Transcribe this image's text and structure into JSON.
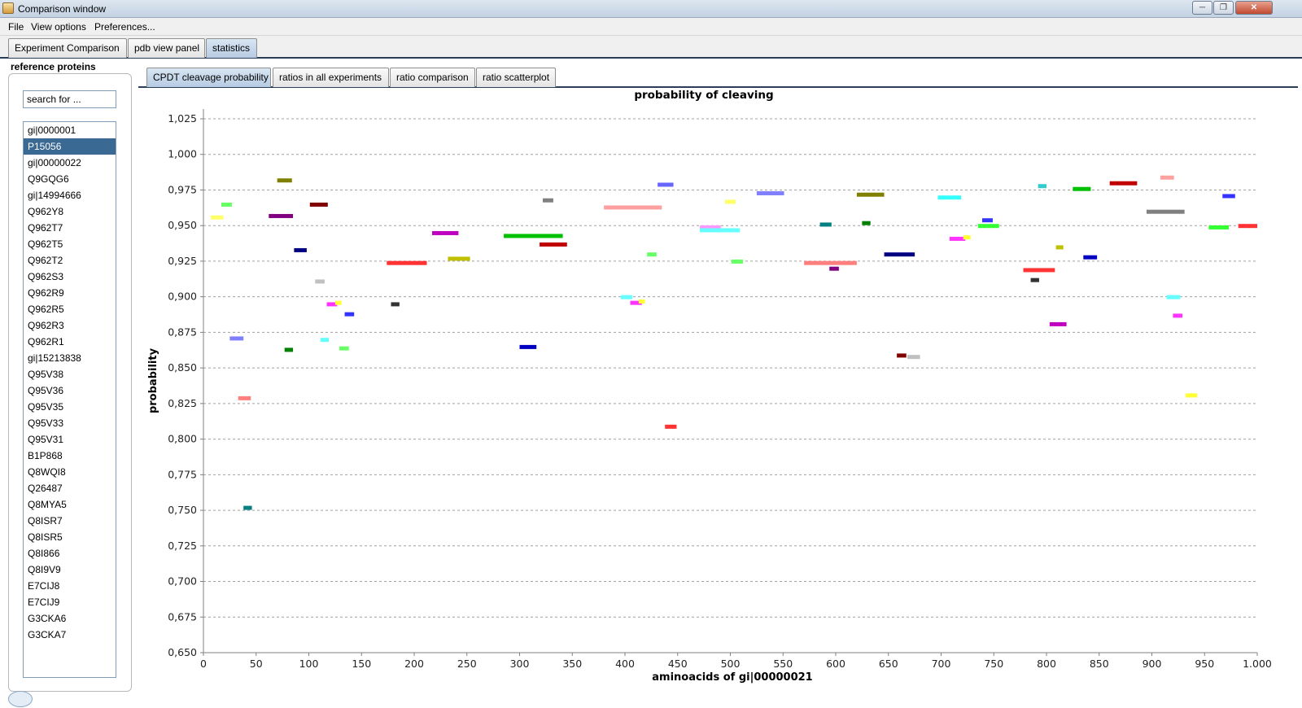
{
  "window": {
    "title": "Comparison window",
    "min": "─",
    "max": "❐",
    "close": "✕"
  },
  "menu": {
    "file": "File",
    "view": "View options",
    "prefs": "Preferences..."
  },
  "main_tabs": [
    "Experiment Comparison",
    "pdb view panel",
    "statistics"
  ],
  "left_panel": {
    "label": "reference proteins",
    "search_value": "search for ...",
    "proteins": [
      "gi|0000001",
      "P15056",
      "gi|00000022",
      "Q9GQG6",
      "gi|14994666",
      "Q962Y8",
      "Q962T7",
      "Q962T5",
      "Q962T2",
      "Q962S3",
      "Q962R9",
      "Q962R5",
      "Q962R3",
      "Q962R1",
      "gi|15213838",
      "Q95V38",
      "Q95V36",
      "Q95V35",
      "Q95V33",
      "Q95V31",
      "B1P868",
      "Q8WQI8",
      "Q26487",
      "Q8MYA5",
      "Q8ISR7",
      "Q8ISR5",
      "Q8I866",
      "Q8I9V9",
      "E7CIJ8",
      "E7CIJ9",
      "G3CKA6",
      "G3CKA7"
    ],
    "selected_index": 1
  },
  "sub_tabs": [
    "CPDT cleavage probability",
    "ratios in all experiments",
    "ratio comparison",
    "ratio scatterplot"
  ],
  "chart_data": {
    "type": "bar",
    "title": "probability of cleaving",
    "xlabel": "aminoacids of gi|00000021",
    "ylabel": "probability",
    "xlim": [
      0,
      1000
    ],
    "ylim": [
      0.65,
      1.025
    ],
    "x_ticks": [
      "0",
      "50",
      "100",
      "150",
      "200",
      "250",
      "300",
      "350",
      "400",
      "450",
      "500",
      "550",
      "600",
      "650",
      "700",
      "750",
      "800",
      "850",
      "900",
      "950",
      "1.000"
    ],
    "y_ticks": [
      "0,650",
      "0,675",
      "0,700",
      "0,725",
      "0,750",
      "0,775",
      "0,800",
      "0,825",
      "0,850",
      "0,875",
      "0,900",
      "0,925",
      "0,950",
      "0,975",
      "1,000",
      "1,025"
    ],
    "grid": true,
    "segments": [
      {
        "x0": 7,
        "x1": 19,
        "y": 0.956,
        "color": "#ffff66"
      },
      {
        "x0": 17,
        "x1": 27,
        "y": 0.965,
        "color": "#66ff66"
      },
      {
        "x0": 25,
        "x1": 38,
        "y": 0.871,
        "color": "#8080ff"
      },
      {
        "x0": 33,
        "x1": 45,
        "y": 0.829,
        "color": "#ff7f7f"
      },
      {
        "x0": 38,
        "x1": 46,
        "y": 0.752,
        "color": "#008080"
      },
      {
        "x0": 62,
        "x1": 85,
        "y": 0.957,
        "color": "#800080"
      },
      {
        "x0": 70,
        "x1": 84,
        "y": 0.982,
        "color": "#808000"
      },
      {
        "x0": 77,
        "x1": 85,
        "y": 0.863,
        "color": "#008000"
      },
      {
        "x0": 86,
        "x1": 98,
        "y": 0.933,
        "color": "#000080"
      },
      {
        "x0": 101,
        "x1": 118,
        "y": 0.965,
        "color": "#800000"
      },
      {
        "x0": 106,
        "x1": 115,
        "y": 0.911,
        "color": "#c0c0c0"
      },
      {
        "x0": 111,
        "x1": 119,
        "y": 0.87,
        "color": "#66ffff"
      },
      {
        "x0": 117,
        "x1": 127,
        "y": 0.895,
        "color": "#ff33ff"
      },
      {
        "x0": 125,
        "x1": 131,
        "y": 0.896,
        "color": "#ffff33"
      },
      {
        "x0": 129,
        "x1": 138,
        "y": 0.864,
        "color": "#66ff66"
      },
      {
        "x0": 134,
        "x1": 143,
        "y": 0.888,
        "color": "#3333ff"
      },
      {
        "x0": 174,
        "x1": 212,
        "y": 0.924,
        "color": "#ff3333"
      },
      {
        "x0": 178,
        "x1": 186,
        "y": 0.895,
        "color": "#333333"
      },
      {
        "x0": 217,
        "x1": 242,
        "y": 0.945,
        "color": "#c000c0"
      },
      {
        "x0": 232,
        "x1": 253,
        "y": 0.927,
        "color": "#c0c000"
      },
      {
        "x0": 285,
        "x1": 341,
        "y": 0.943,
        "color": "#00c000"
      },
      {
        "x0": 300,
        "x1": 316,
        "y": 0.865,
        "color": "#0000c0"
      },
      {
        "x0": 322,
        "x1": 332,
        "y": 0.968,
        "color": "#808080"
      },
      {
        "x0": 319,
        "x1": 345,
        "y": 0.937,
        "color": "#c00000"
      },
      {
        "x0": 380,
        "x1": 435,
        "y": 0.963,
        "color": "#ffa0a0"
      },
      {
        "x0": 396,
        "x1": 407,
        "y": 0.9,
        "color": "#66ffff"
      },
      {
        "x0": 405,
        "x1": 416,
        "y": 0.896,
        "color": "#ff33ff"
      },
      {
        "x0": 413,
        "x1": 419,
        "y": 0.897,
        "color": "#ffff33"
      },
      {
        "x0": 421,
        "x1": 430,
        "y": 0.93,
        "color": "#66ff66"
      },
      {
        "x0": 431,
        "x1": 446,
        "y": 0.979,
        "color": "#6666ff"
      },
      {
        "x0": 438,
        "x1": 449,
        "y": 0.809,
        "color": "#ff3333"
      },
      {
        "x0": 471,
        "x1": 491,
        "y": 0.949,
        "color": "#ff99ff"
      },
      {
        "x0": 471,
        "x1": 509,
        "y": 0.947,
        "color": "#66ffff"
      },
      {
        "x0": 495,
        "x1": 505,
        "y": 0.967,
        "color": "#ffff66"
      },
      {
        "x0": 501,
        "x1": 512,
        "y": 0.925,
        "color": "#66ff66"
      },
      {
        "x0": 525,
        "x1": 551,
        "y": 0.973,
        "color": "#8080ff"
      },
      {
        "x0": 570,
        "x1": 620,
        "y": 0.924,
        "color": "#ff7f7f"
      },
      {
        "x0": 585,
        "x1": 596,
        "y": 0.951,
        "color": "#008080"
      },
      {
        "x0": 594,
        "x1": 603,
        "y": 0.92,
        "color": "#800080"
      },
      {
        "x0": 620,
        "x1": 646,
        "y": 0.972,
        "color": "#808000"
      },
      {
        "x0": 625,
        "x1": 633,
        "y": 0.952,
        "color": "#008000"
      },
      {
        "x0": 646,
        "x1": 675,
        "y": 0.93,
        "color": "#000080"
      },
      {
        "x0": 658,
        "x1": 667,
        "y": 0.859,
        "color": "#800000"
      },
      {
        "x0": 668,
        "x1": 680,
        "y": 0.858,
        "color": "#c0c0c0"
      },
      {
        "x0": 697,
        "x1": 719,
        "y": 0.97,
        "color": "#33ffff"
      },
      {
        "x0": 708,
        "x1": 723,
        "y": 0.941,
        "color": "#ff33ff"
      },
      {
        "x0": 721,
        "x1": 728,
        "y": 0.942,
        "color": "#ffff33"
      },
      {
        "x0": 735,
        "x1": 755,
        "y": 0.95,
        "color": "#33ff33"
      },
      {
        "x0": 739,
        "x1": 749,
        "y": 0.954,
        "color": "#3333ff"
      },
      {
        "x0": 778,
        "x1": 808,
        "y": 0.919,
        "color": "#ff3333"
      },
      {
        "x0": 785,
        "x1": 793,
        "y": 0.912,
        "color": "#333333"
      },
      {
        "x0": 792,
        "x1": 800,
        "y": 0.978,
        "color": "#33cccc"
      },
      {
        "x0": 803,
        "x1": 819,
        "y": 0.881,
        "color": "#c000c0"
      },
      {
        "x0": 809,
        "x1": 816,
        "y": 0.935,
        "color": "#c0c000"
      },
      {
        "x0": 825,
        "x1": 842,
        "y": 0.976,
        "color": "#00c000"
      },
      {
        "x0": 835,
        "x1": 848,
        "y": 0.928,
        "color": "#0000c0"
      },
      {
        "x0": 860,
        "x1": 886,
        "y": 0.98,
        "color": "#c00000"
      },
      {
        "x0": 895,
        "x1": 931,
        "y": 0.96,
        "color": "#808080"
      },
      {
        "x0": 908,
        "x1": 921,
        "y": 0.984,
        "color": "#ffa0a0"
      },
      {
        "x0": 914,
        "x1": 927,
        "y": 0.9,
        "color": "#66ffff"
      },
      {
        "x0": 920,
        "x1": 929,
        "y": 0.887,
        "color": "#ff33ff"
      },
      {
        "x0": 932,
        "x1": 943,
        "y": 0.831,
        "color": "#ffff33"
      },
      {
        "x0": 954,
        "x1": 973,
        "y": 0.949,
        "color": "#33ff33"
      },
      {
        "x0": 967,
        "x1": 979,
        "y": 0.971,
        "color": "#3333ff"
      },
      {
        "x0": 982,
        "x1": 1000,
        "y": 0.95,
        "color": "#ff3333"
      }
    ]
  }
}
